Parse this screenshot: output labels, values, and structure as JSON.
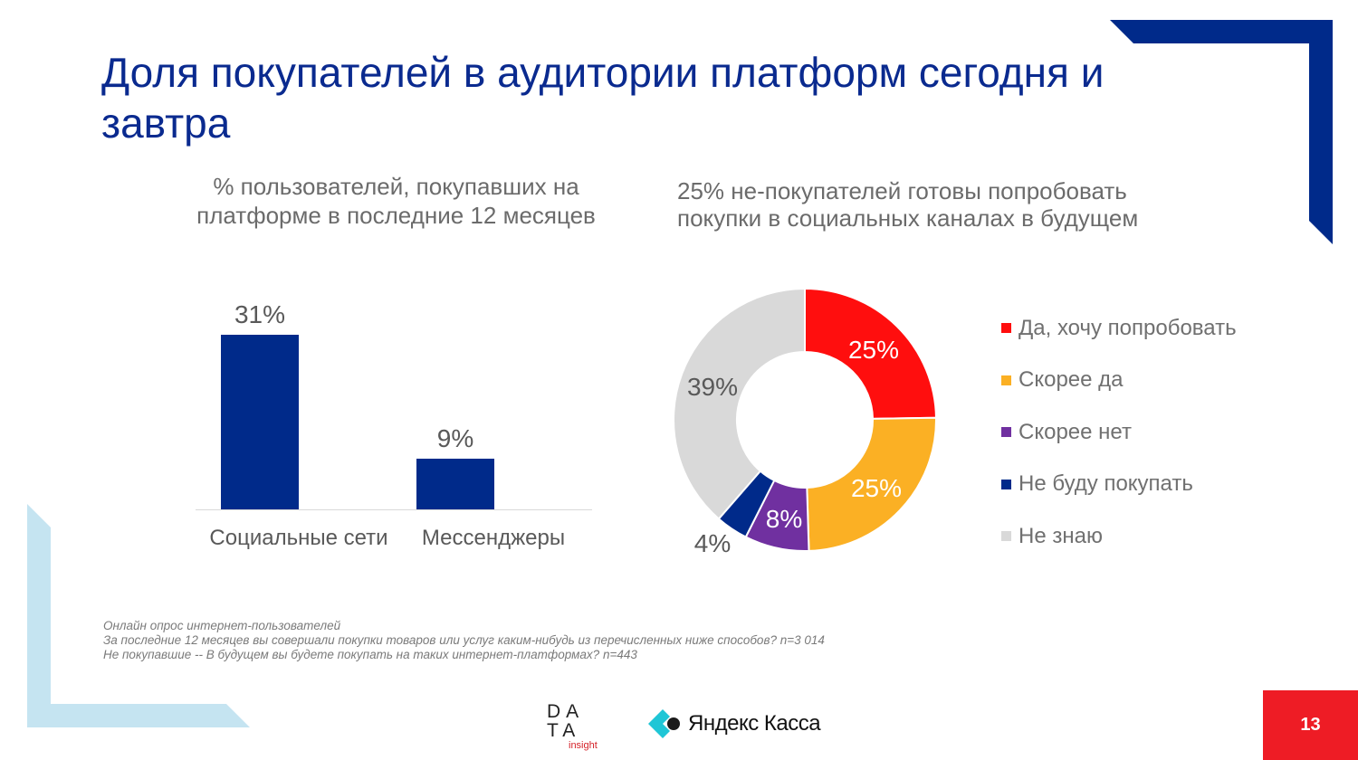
{
  "slide": {
    "title": "Доля покупателей в аудитории платформ сегодня и завтра",
    "page_number": "13"
  },
  "left_chart_subtitle": "% пользователей, покупавших на платформе в последние 12 месяцев",
  "right_chart_subtitle": "25% не-покупателей готовы попробовать покупки в социальных каналах в будущем",
  "footnote": {
    "line1": "Онлайн опрос интернет-пользователей",
    "line2": "За последние 12 месяцев вы совершали покупки товаров или услуг каким-нибудь из перечисленных ниже способов? n=3 014",
    "line3": "Не покупавшие -- В будущем вы будете покупать на таких интернет-платформах? n=443"
  },
  "logos": {
    "data_insight_line1": "DA",
    "data_insight_line2": "TA",
    "data_insight_line3": "insight",
    "yandex_kassa": "Яндекс Касса"
  },
  "colors": {
    "title": "#0a2a8f",
    "bar": "#002a8a",
    "yes": "#ff0e0e",
    "rather_yes": "#fbb024",
    "rather_no": "#7030a0",
    "no": "#002a8a",
    "dont_know": "#d9d9d9",
    "accent_red": "#ee1c25",
    "frame_blue": "#002a8a",
    "frame_light": "#c5e4f1"
  },
  "chart_data": [
    {
      "type": "bar",
      "title": "% пользователей, покупавших на платформе в последние 12 месяцев",
      "categories": [
        "Социальные сети",
        "Мессенджеры"
      ],
      "values": [
        31,
        9
      ],
      "value_labels": [
        "31%",
        "9%"
      ],
      "ylim": [
        0,
        35
      ],
      "xlabel": "",
      "ylabel": ""
    },
    {
      "type": "pie",
      "subtype": "donut",
      "title": "25% не-покупателей готовы попробовать покупки в социальных каналах в будущем",
      "categories": [
        "Да, хочу попробовать",
        "Скорее да",
        "Скорее нет",
        "Не буду покупать",
        "Не знаю"
      ],
      "values": [
        25,
        25,
        8,
        4,
        39
      ],
      "value_labels": [
        "25%",
        "25%",
        "8%",
        "4%",
        "39%"
      ],
      "legend_position": "right"
    }
  ]
}
